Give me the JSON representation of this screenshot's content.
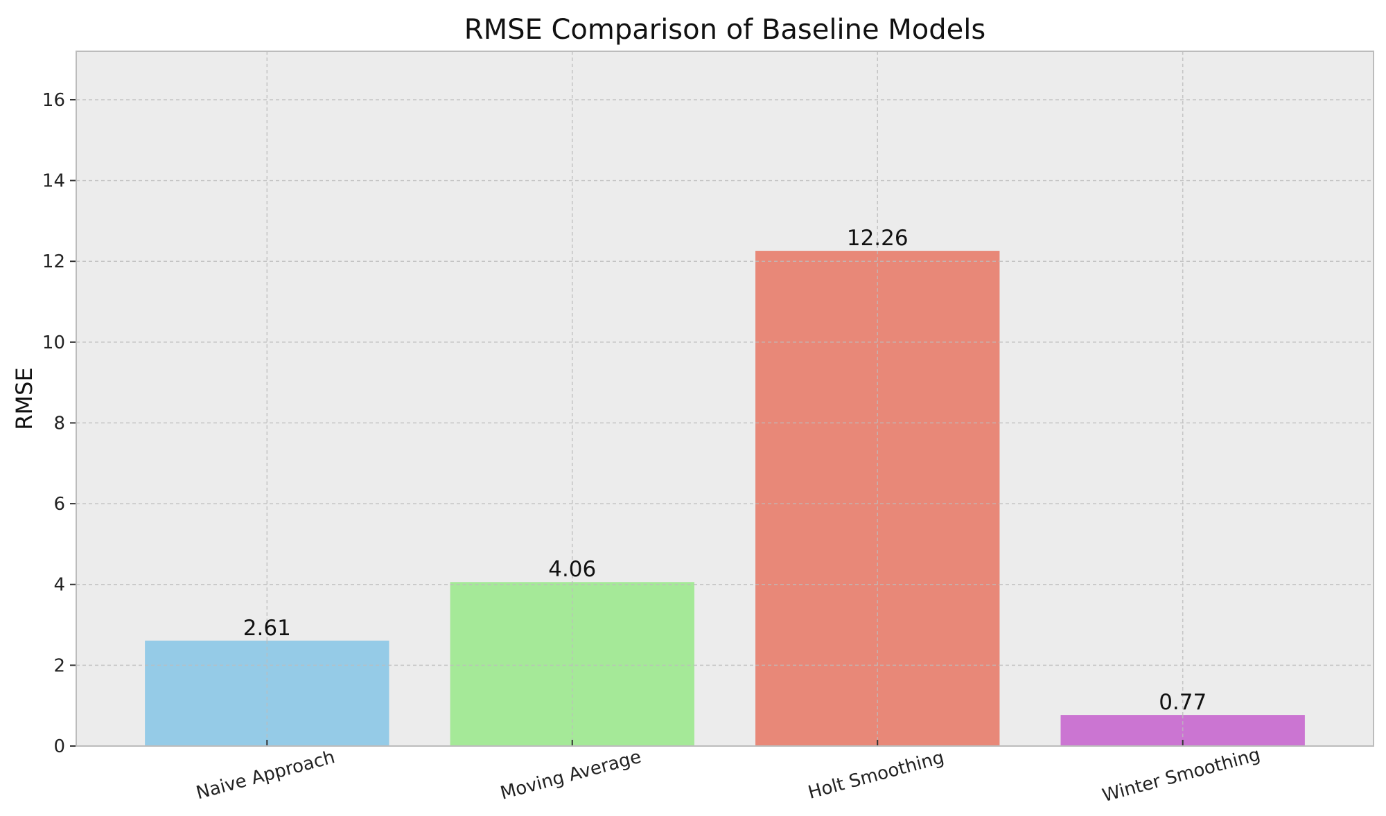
{
  "chart_data": {
    "type": "bar",
    "title": "RMSE Comparison of Baseline Models",
    "xlabel": "",
    "ylabel": "RMSE",
    "categories": [
      "Naive Approach",
      "Moving Average",
      "Holt Smoothing",
      "Winter Smoothing"
    ],
    "values": [
      2.61,
      4.06,
      12.26,
      0.77
    ],
    "value_labels": [
      "2.61",
      "4.06",
      "12.26",
      "0.77"
    ],
    "colors": [
      "#95cbe7",
      "#a5e998",
      "#e88878",
      "#cb75d2"
    ],
    "ylim": [
      0,
      17.2
    ],
    "yticks": [
      0,
      2,
      4,
      6,
      8,
      10,
      12,
      14,
      16
    ],
    "ytick_labels": [
      "0",
      "2",
      "4",
      "6",
      "8",
      "10",
      "12",
      "14",
      "16"
    ],
    "grid": true,
    "x_tick_rotation_deg": -15,
    "background": "#ececec"
  }
}
